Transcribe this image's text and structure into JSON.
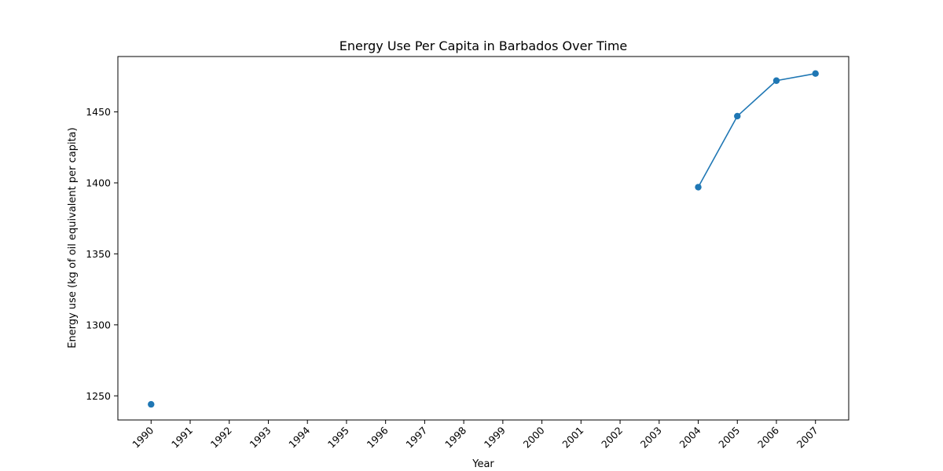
{
  "chart_data": {
    "type": "line",
    "title": "Energy Use Per Capita in Barbados Over Time",
    "xlabel": "Year",
    "ylabel": "Energy use (kg of oil equivalent per capita)",
    "x_ticks": [
      "1990",
      "1991",
      "1992",
      "1993",
      "1994",
      "1995",
      "1996",
      "1997",
      "1998",
      "1999",
      "2000",
      "2001",
      "2002",
      "2003",
      "2004",
      "2005",
      "2006",
      "2007"
    ],
    "y_ticks": [
      1250,
      1300,
      1350,
      1400,
      1450
    ],
    "ylim": [
      1233,
      1489
    ],
    "xlim": [
      1989.15,
      2007.85
    ],
    "grid": false,
    "legend": "none",
    "series": [
      {
        "color": "#1f77b4",
        "points": [
          {
            "x": 1990,
            "y": 1244
          },
          {
            "x": 2004,
            "y": 1397
          },
          {
            "x": 2005,
            "y": 1447
          },
          {
            "x": 2006,
            "y": 1472
          },
          {
            "x": 2007,
            "y": 1477
          }
        ],
        "line_segments": [
          [
            2004,
            2005,
            2006,
            2007
          ]
        ]
      }
    ]
  }
}
